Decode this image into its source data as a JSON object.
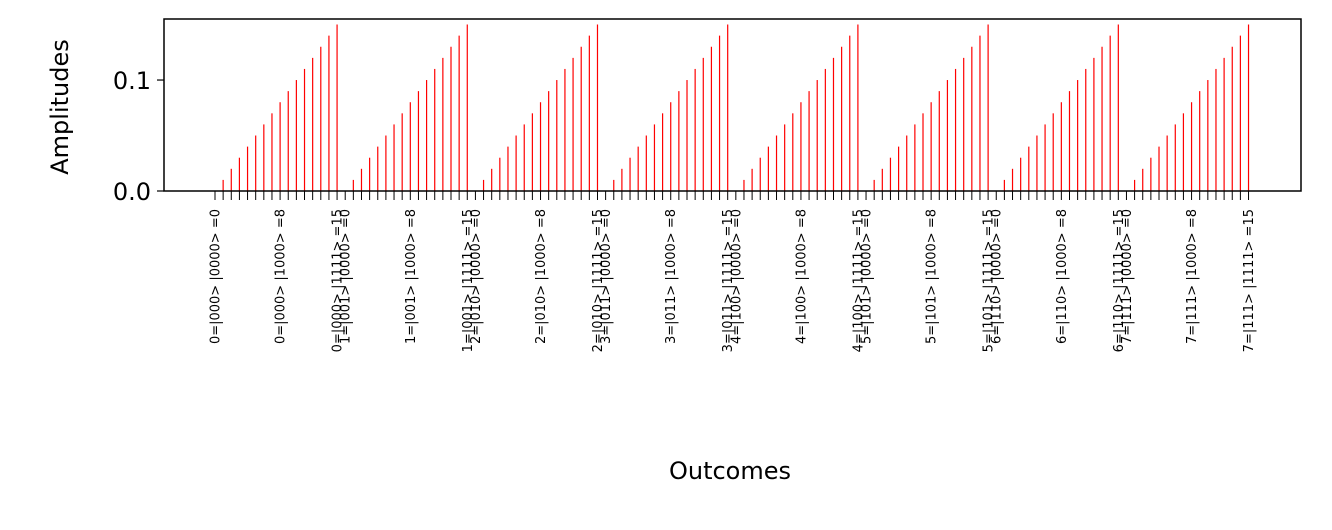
{
  "chart_data": {
    "type": "bar",
    "xlabel": "Outcomes",
    "ylabel": "Amplitudes",
    "ylim": [
      0,
      0.155
    ],
    "yticks": [
      {
        "value": 0.0,
        "label": "0.0"
      },
      {
        "value": 0.1,
        "label": "0.1"
      }
    ],
    "bar_color": "#ff0000",
    "num_outcomes": 128,
    "group_size": 16,
    "group_values": [
      0.0,
      0.01,
      0.02,
      0.03,
      0.04,
      0.05,
      0.06,
      0.07,
      0.08,
      0.09,
      0.1,
      0.11,
      0.12,
      0.13,
      0.14,
      0.15
    ],
    "tick_labels": [
      {
        "index": 0,
        "label": "0=|000> |0000> =0"
      },
      {
        "index": 8,
        "label": "0=|000> |1000> =8"
      },
      {
        "index": 15,
        "label": "0=|000> |1111> =15"
      },
      {
        "index": 16,
        "label": "1=|001> |0000> =0"
      },
      {
        "index": 24,
        "label": "1=|001> |1000> =8"
      },
      {
        "index": 31,
        "label": "1=|001> |1111> =15"
      },
      {
        "index": 32,
        "label": "2=|010> |0000> =0"
      },
      {
        "index": 40,
        "label": "2=|010> |1000> =8"
      },
      {
        "index": 47,
        "label": "2=|010> |1111> =15"
      },
      {
        "index": 48,
        "label": "3=|011> |0000> =0"
      },
      {
        "index": 56,
        "label": "3=|011> |1000> =8"
      },
      {
        "index": 63,
        "label": "3=|011> |1111> =15"
      },
      {
        "index": 64,
        "label": "4=|100> |0000> =0"
      },
      {
        "index": 72,
        "label": "4=|100> |1000> =8"
      },
      {
        "index": 79,
        "label": "4=|100> |1111> =15"
      },
      {
        "index": 80,
        "label": "5=|101> |0000> =0"
      },
      {
        "index": 88,
        "label": "5=|101> |1000> =8"
      },
      {
        "index": 95,
        "label": "5=|101> |1111> =15"
      },
      {
        "index": 96,
        "label": "6=|110> |0000> =0"
      },
      {
        "index": 104,
        "label": "6=|110> |1000> =8"
      },
      {
        "index": 111,
        "label": "6=|110> |1111> =15"
      },
      {
        "index": 112,
        "label": "7=|111> |0000> =0"
      },
      {
        "index": 120,
        "label": "7=|111> |1000> =8"
      },
      {
        "index": 127,
        "label": "7=|111> |1111> =15"
      }
    ]
  }
}
